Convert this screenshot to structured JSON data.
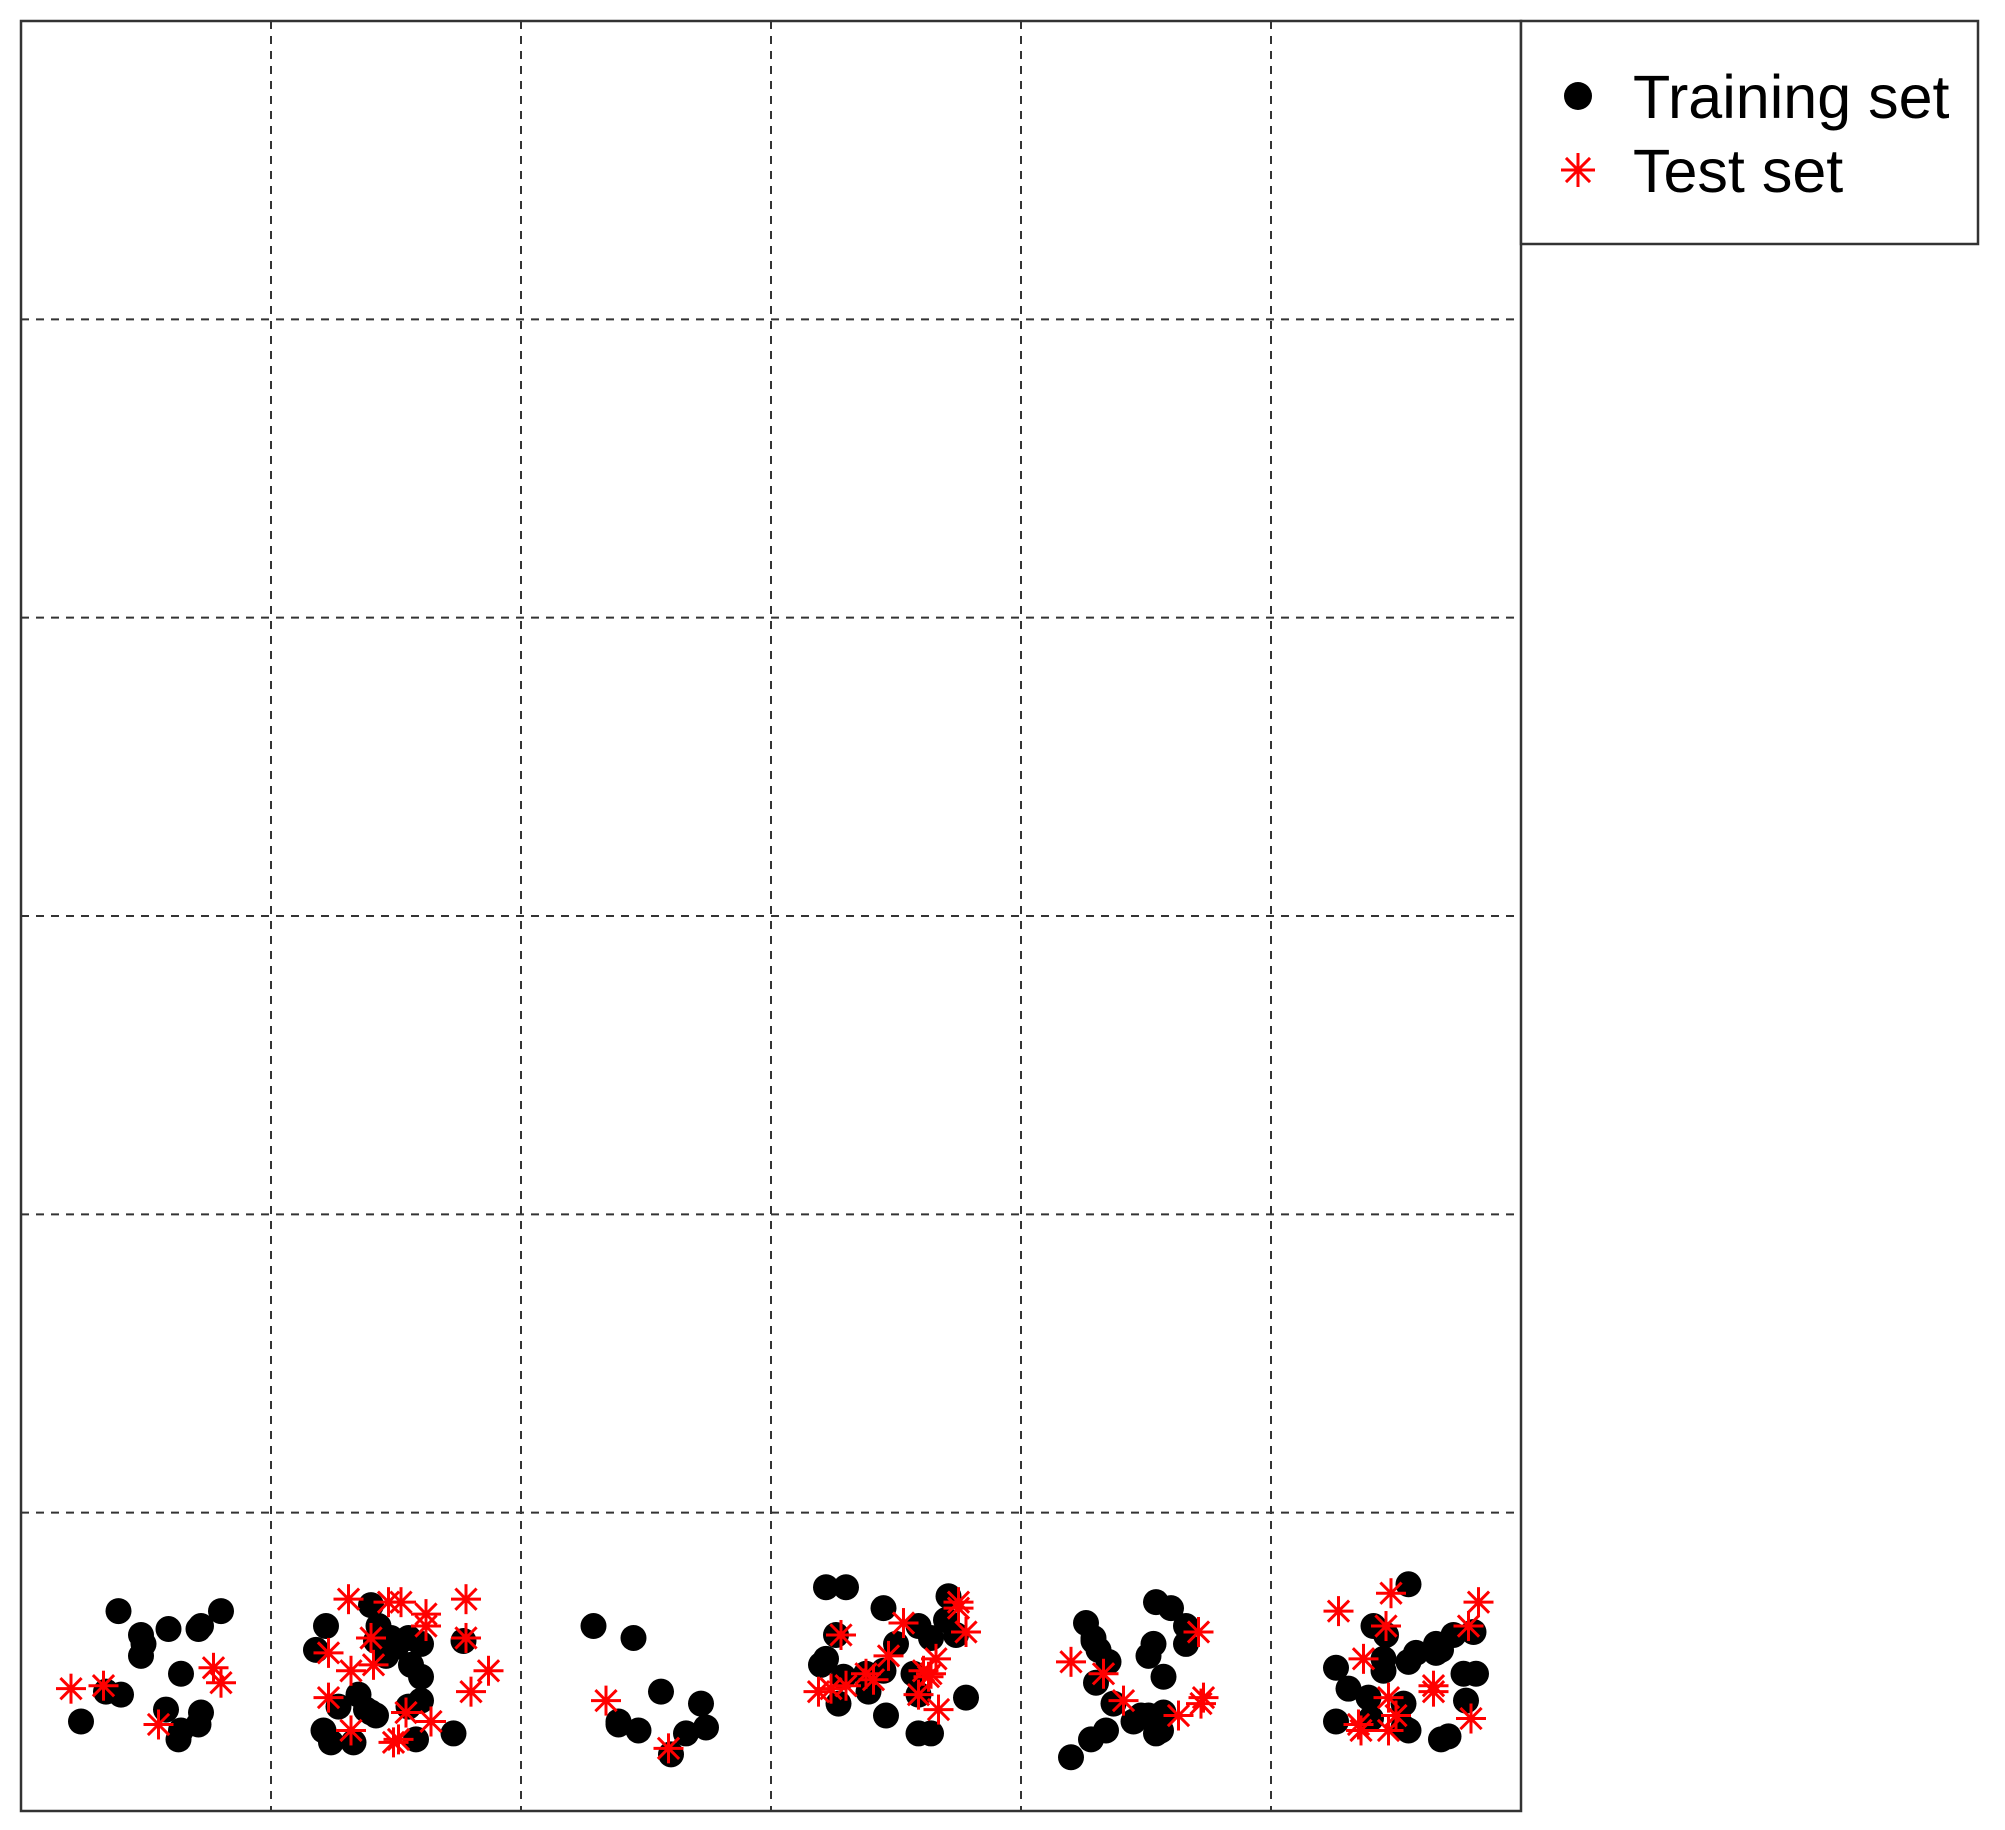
{
  "chart_data": {
    "type": "scatter",
    "grid": "6x6 dashed cell grid",
    "colors": {
      "training": "#000000",
      "test": "#ff0000"
    },
    "legend": {
      "placement": "top-right",
      "entries": [
        {
          "label": "Training set",
          "marker": "filled-circle",
          "color": "#000000"
        },
        {
          "label": "Test set",
          "marker": "asterisk",
          "color": "#ff0000"
        }
      ]
    },
    "series": [
      {
        "name": "Training set",
        "points": [
          [
            0.24,
            0.3
          ],
          [
            0.8,
            0.67
          ],
          [
            1.4,
            0.69
          ],
          [
            1.6,
            0.56
          ],
          [
            3.45,
            0.68
          ],
          [
            3.29,
            0.45
          ],
          [
            3.78,
            0.38
          ],
          [
            4.29,
            0.57
          ],
          [
            4.54,
            0.7
          ],
          [
            5.68,
            0.54
          ],
          [
            0.4,
            0.39
          ],
          [
            0.58,
            0.34
          ],
          [
            0.64,
            0.27
          ],
          [
            1.22,
            0.62
          ],
          [
            1.21,
            0.27
          ],
          [
            1.38,
            0.34
          ],
          [
            1.33,
            0.23
          ],
          [
            1.24,
            0.23
          ],
          [
            1.58,
            0.24
          ],
          [
            1.6,
            0.37
          ],
          [
            2.39,
            0.3
          ],
          [
            2.66,
            0.26
          ],
          [
            2.6,
            0.19
          ],
          [
            3.22,
            0.75
          ],
          [
            3.3,
            0.75
          ],
          [
            3.59,
            0.62
          ],
          [
            3.7,
            0.64
          ],
          [
            3.39,
            0.4
          ],
          [
            3.57,
            0.46
          ],
          [
            4.2,
            0.18
          ],
          [
            4.28,
            0.24
          ],
          [
            4.37,
            0.36
          ],
          [
            4.3,
            0.43
          ],
          [
            4.51,
            0.52
          ],
          [
            4.35,
            0.5
          ],
          [
            5.53,
            0.28
          ],
          [
            5.53,
            0.36
          ],
          [
            5.46,
            0.59
          ],
          [
            5.58,
            0.53
          ],
          [
            5.66,
            0.56
          ],
          [
            5.66,
            0.53
          ],
          [
            5.26,
            0.3
          ],
          [
            5.45,
            0.51
          ],
          [
            0.34,
            0.4
          ],
          [
            0.49,
            0.56
          ],
          [
            0.72,
            0.62
          ],
          [
            1.42,
            0.57
          ],
          [
            1.27,
            0.35
          ],
          [
            1.4,
            0.33
          ],
          [
            2.29,
            0.62
          ],
          [
            2.45,
            0.58
          ],
          [
            2.39,
            0.29
          ],
          [
            2.47,
            0.27
          ],
          [
            2.56,
            0.4
          ],
          [
            3.64,
            0.58
          ],
          [
            3.59,
            0.26
          ],
          [
            3.64,
            0.26
          ],
          [
            5.4,
            0.31
          ],
          [
            5.55,
            0.27
          ],
          [
            0.39,
            0.67
          ],
          [
            1.48,
            0.58
          ],
          [
            1.56,
            0.49
          ],
          [
            1.6,
            0.45
          ],
          [
            1.35,
            0.39
          ],
          [
            2.72,
            0.36
          ],
          [
            2.74,
            0.28
          ],
          [
            3.27,
            0.36
          ],
          [
            3.45,
            0.47
          ],
          [
            3.46,
            0.32
          ],
          [
            3.59,
            0.39
          ],
          [
            3.71,
            0.72
          ],
          [
            3.74,
            0.59
          ],
          [
            5.41,
            0.62
          ],
          [
            5.55,
            0.76
          ],
          [
            5.26,
            0.48
          ],
          [
            5.31,
            0.41
          ],
          [
            5.39,
            0.38
          ],
          [
            5.45,
            0.47
          ],
          [
            5.55,
            0.5
          ],
          [
            5.73,
            0.59
          ],
          [
            5.77,
            0.46
          ],
          [
            5.82,
            0.46
          ],
          [
            5.71,
            0.25
          ],
          [
            5.68,
            0.24
          ],
          [
            5.81,
            0.6
          ],
          [
            1.43,
            0.62
          ],
          [
            1.45,
            0.58
          ],
          [
            1.5,
            0.55
          ],
          [
            1.77,
            0.57
          ],
          [
            1.73,
            0.26
          ],
          [
            3.26,
            0.59
          ],
          [
            3.22,
            0.51
          ],
          [
            3.38,
            0.46
          ],
          [
            3.5,
            0.56
          ],
          [
            4.26,
            0.63
          ],
          [
            4.6,
            0.68
          ],
          [
            4.34,
            0.27
          ],
          [
            4.45,
            0.3
          ],
          [
            4.54,
            0.26
          ],
          [
            4.56,
            0.27
          ],
          [
            0.48,
            0.59
          ],
          [
            0.48,
            0.52
          ],
          [
            0.59,
            0.61
          ],
          [
            0.71,
            0.61
          ],
          [
            0.64,
            0.46
          ],
          [
            0.72,
            0.33
          ],
          [
            0.63,
            0.24
          ],
          [
            0.71,
            0.29
          ],
          [
            1.18,
            0.54
          ],
          [
            1.55,
            0.58
          ],
          [
            1.46,
            0.52
          ],
          [
            1.42,
            0.32
          ],
          [
            1.55,
            0.35
          ],
          [
            3.2,
            0.49
          ],
          [
            4.29,
            0.58
          ],
          [
            4.31,
            0.54
          ],
          [
            4.53,
            0.56
          ],
          [
            4.66,
            0.62
          ],
          [
            4.66,
            0.56
          ],
          [
            4.57,
            0.45
          ],
          [
            4.57,
            0.33
          ],
          [
            4.48,
            0.32
          ],
          [
            4.51,
            0.32
          ],
          [
            5.78,
            0.37
          ]
        ]
      },
      {
        "name": "Test set",
        "points": [
          [
            1.52,
            0.7
          ],
          [
            1.41,
            0.49
          ],
          [
            1.54,
            0.33
          ],
          [
            3.53,
            0.63
          ],
          [
            3.19,
            0.4
          ],
          [
            3.41,
            0.44
          ],
          [
            3.63,
            0.45
          ],
          [
            4.33,
            0.46
          ],
          [
            4.71,
            0.6
          ],
          [
            0.33,
            0.42
          ],
          [
            0.77,
            0.48
          ],
          [
            1.4,
            0.58
          ],
          [
            1.32,
            0.47
          ],
          [
            1.23,
            0.38
          ],
          [
            3.75,
            0.68
          ],
          [
            3.24,
            0.41
          ],
          [
            3.38,
            0.46
          ],
          [
            3.66,
            0.51
          ],
          [
            3.59,
            0.39
          ],
          [
            4.72,
            0.36
          ],
          [
            5.46,
            0.62
          ],
          [
            5.65,
            0.42
          ],
          [
            5.65,
            0.4
          ],
          [
            0.2,
            0.41
          ],
          [
            1.78,
            0.58
          ],
          [
            2.59,
            0.21
          ],
          [
            3.3,
            0.42
          ],
          [
            3.47,
            0.52
          ],
          [
            3.67,
            0.34
          ],
          [
            0.55,
            0.29
          ],
          [
            0.8,
            0.43
          ],
          [
            1.23,
            0.53
          ],
          [
            1.62,
            0.62
          ],
          [
            1.78,
            0.71
          ],
          [
            1.8,
            0.4
          ],
          [
            1.64,
            0.3
          ],
          [
            2.34,
            0.37
          ],
          [
            3.28,
            0.59
          ],
          [
            3.61,
            0.47
          ],
          [
            3.64,
            0.46
          ],
          [
            5.48,
            0.73
          ],
          [
            5.79,
            0.62
          ],
          [
            5.83,
            0.7
          ],
          [
            5.37,
            0.51
          ],
          [
            5.47,
            0.38
          ],
          [
            5.36,
            0.27
          ],
          [
            5.47,
            0.27
          ],
          [
            3.75,
            0.7
          ],
          [
            3.78,
            0.6
          ],
          [
            4.73,
            0.38
          ],
          [
            5.27,
            0.67
          ],
          [
            5.35,
            0.29
          ],
          [
            1.31,
            0.71
          ],
          [
            1.47,
            0.7
          ],
          [
            1.62,
            0.66
          ],
          [
            1.87,
            0.47
          ],
          [
            1.32,
            0.27
          ],
          [
            1.49,
            0.23
          ],
          [
            1.51,
            0.24
          ],
          [
            4.2,
            0.5
          ],
          [
            4.41,
            0.37
          ],
          [
            4.63,
            0.32
          ],
          [
            5.5,
            0.32
          ],
          [
            5.8,
            0.31
          ]
        ]
      }
    ]
  }
}
